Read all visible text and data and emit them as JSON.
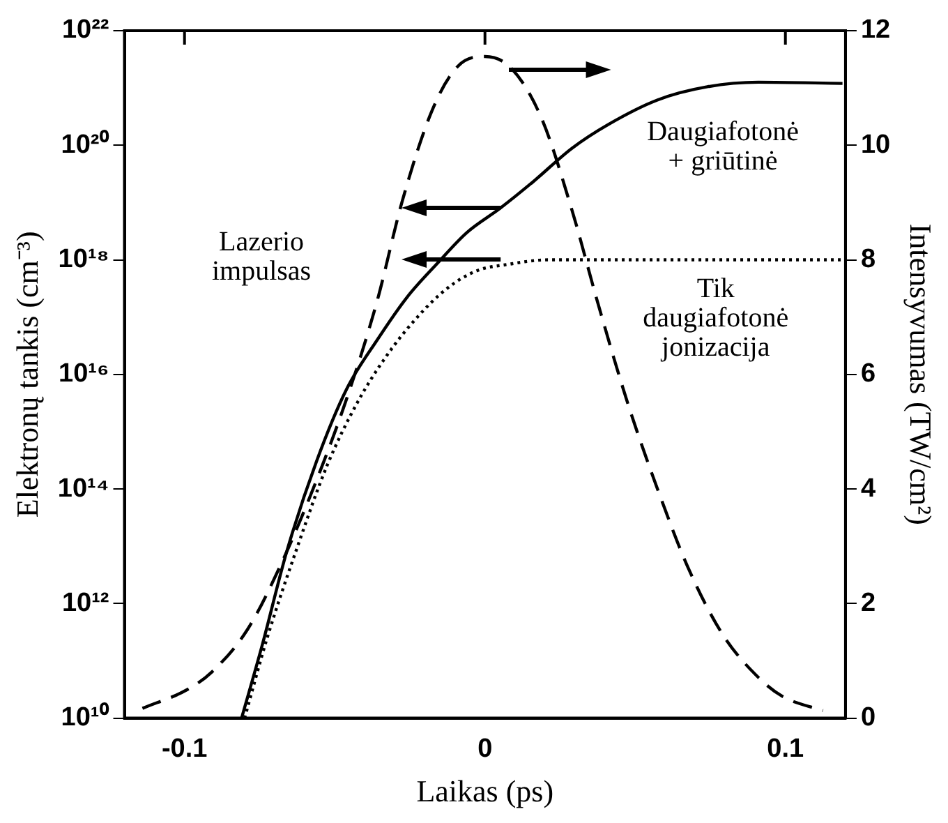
{
  "chart_data": {
    "type": "line",
    "xlabel": "Laikas (ps)",
    "ylabel": "Elektronų tankis (cm⁻³)",
    "y2label": "Intensyvumas (TW/cm²)",
    "xlim": [
      -0.12,
      0.12
    ],
    "xticks": [
      -0.1,
      0,
      0.1
    ],
    "log": "y",
    "ylim": [
      10000000000.0,
      1e+22
    ],
    "yticks": [
      {
        "value": 10000000000.0,
        "label": "10¹⁰"
      },
      {
        "value": 1000000000000.0,
        "label": "10¹²"
      },
      {
        "value": 100000000000000.0,
        "label": "10¹⁴"
      },
      {
        "value": 1e+16,
        "label": "10¹⁶"
      },
      {
        "value": 1e+18,
        "label": "10¹⁸"
      },
      {
        "value": 1e+20,
        "label": "10²⁰"
      },
      {
        "value": 1e+22,
        "label": "10²²"
      }
    ],
    "y2lim": [
      0,
      12
    ],
    "y2ticks": [
      0,
      2,
      4,
      6,
      8,
      10,
      12
    ],
    "grid": false,
    "legend": false,
    "marker": "none",
    "series": [
      {
        "color": "#000000",
        "line_style": "dashed",
        "axis": "y2",
        "x": [
          -0.114,
          -0.099,
          -0.091,
          -0.079,
          -0.0675,
          -0.056,
          -0.046,
          -0.036,
          -0.0275,
          -0.0175,
          -0.009,
          0,
          0.009,
          0.019,
          0.029,
          0.0375,
          0.0475,
          0.0575,
          0.0675,
          0.079,
          0.091,
          0.099,
          0.1125
        ],
        "values": [
          0.17,
          0.5,
          0.8,
          1.55,
          2.73,
          4.16,
          5.58,
          7.26,
          9.03,
          10.62,
          11.38,
          11.55,
          11.33,
          10.45,
          8.86,
          7.26,
          5.5,
          3.99,
          2.64,
          1.47,
          0.71,
          0.38,
          0.13
        ]
      },
      {
        "color": "#000000",
        "line_style": "solid",
        "x": [
          -0.081,
          -0.074,
          -0.066,
          -0.056,
          -0.046,
          -0.036,
          -0.026,
          -0.016,
          -0.006,
          0.005,
          0.016,
          0.029,
          0.041,
          0.0575,
          0.074,
          0.091,
          0.119
        ],
        "values": [
          10000000000.0,
          200000000000.0,
          8000000000000.0,
          310000000000000.0,
          5600000000000000.0,
          3.9e+16,
          2.2e+17,
          8.5e+17,
          3e+18,
          7.9e+18,
          2.3e+19,
          8.9e+19,
          2.3e+20,
          6.2e+20,
          1.05e+21,
          1.26e+21,
          1.2e+21
        ]
      },
      {
        "color": "#000000",
        "line_style": "dotted",
        "x": [
          -0.08,
          -0.0725,
          -0.0625,
          -0.0525,
          -0.0425,
          -0.0325,
          -0.0225,
          -0.0125,
          -0.0025,
          0.0075,
          0.021,
          0.041,
          0.12
        ],
        "values": [
          10000000000.0,
          250000000000.0,
          9500000000000.0,
          260000000000000.0,
          3200000000000000.0,
          2.2e+16,
          1e+17,
          3.2e+17,
          6.5e+17,
          8.3e+17,
          1e+18,
          1e+18,
          1e+18
        ]
      }
    ],
    "annotations": [
      "Daugiafotonė\n+ griūtinė",
      "Lazerio\nimpulsas",
      "Tik\ndaugiafotonė\njonizacija"
    ]
  }
}
